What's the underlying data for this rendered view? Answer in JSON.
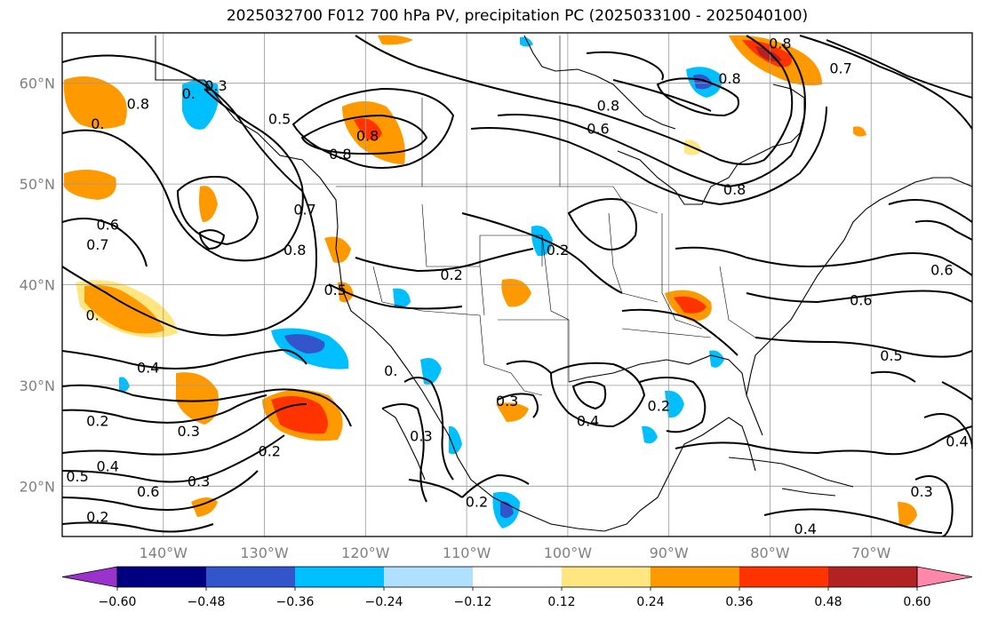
{
  "title": "2025032700 F012 700 hPa PV, precipitation PC (2025033100 - 2025040100)",
  "map": {
    "lon_range": [
      -150,
      -60
    ],
    "lat_range": [
      15,
      65
    ],
    "lat_labels": [
      "20°N",
      "30°N",
      "40°N",
      "50°N",
      "60°N"
    ],
    "lon_labels": [
      "140°W",
      "130°W",
      "120°W",
      "110°W",
      "100°W",
      "90°W",
      "80°W",
      "70°W"
    ]
  },
  "colorbar": {
    "ticks": [
      "−0.60",
      "−0.48",
      "−0.36",
      "−0.24",
      "−0.12",
      "0.12",
      "0.24",
      "0.36",
      "0.48",
      "0.60"
    ],
    "colors": [
      "#9933cc",
      "#000080",
      "#3355cc",
      "#00bfff",
      "#b0e0ff",
      "#ffffff",
      "#ffe680",
      "#ff9900",
      "#ff3300",
      "#b22222",
      "#ff88aa"
    ]
  },
  "contour_labels": [
    {
      "text": "0.3",
      "lon": -134.8,
      "lat": 59.8
    },
    {
      "text": "0.",
      "lon": -137.5,
      "lat": 59.0
    },
    {
      "text": "0.5",
      "lon": -128.5,
      "lat": 56.5
    },
    {
      "text": "0.8",
      "lon": -142.5,
      "lat": 58.0
    },
    {
      "text": "0.8",
      "lon": -119.8,
      "lat": 54.8
    },
    {
      "text": "0.8",
      "lon": -122.5,
      "lat": 53.0
    },
    {
      "text": "0.7",
      "lon": -126.0,
      "lat": 47.5
    },
    {
      "text": "0.8",
      "lon": -127.0,
      "lat": 43.5
    },
    {
      "text": "0.6",
      "lon": -145.5,
      "lat": 46.0
    },
    {
      "text": "0.7",
      "lon": -146.5,
      "lat": 44.0
    },
    {
      "text": "0.5",
      "lon": -123.0,
      "lat": 39.5
    },
    {
      "text": "0.2",
      "lon": -111.5,
      "lat": 41.0
    },
    {
      "text": "0.2",
      "lon": -101.0,
      "lat": 43.5
    },
    {
      "text": "0.8",
      "lon": -96.0,
      "lat": 57.8
    },
    {
      "text": "0.6",
      "lon": -97.0,
      "lat": 55.5
    },
    {
      "text": "0.8",
      "lon": -84.0,
      "lat": 60.5
    },
    {
      "text": "0.8",
      "lon": -79.0,
      "lat": 64.0
    },
    {
      "text": "0.7",
      "lon": -73.0,
      "lat": 61.5
    },
    {
      "text": "0.8",
      "lon": -83.5,
      "lat": 49.5
    },
    {
      "text": "0.6",
      "lon": -71.0,
      "lat": 38.5
    },
    {
      "text": "0.6",
      "lon": -63.0,
      "lat": 41.5
    },
    {
      "text": "0.5",
      "lon": -68.0,
      "lat": 33.0
    },
    {
      "text": "0.4",
      "lon": -61.5,
      "lat": 24.5
    },
    {
      "text": "0.3",
      "lon": -65.0,
      "lat": 19.5
    },
    {
      "text": "0.4",
      "lon": -76.5,
      "lat": 15.8
    },
    {
      "text": "0.2",
      "lon": -109.0,
      "lat": 18.5
    },
    {
      "text": "0.3",
      "lon": -114.5,
      "lat": 25.0
    },
    {
      "text": "0.3",
      "lon": -106.0,
      "lat": 28.5
    },
    {
      "text": "0.4",
      "lon": -98.0,
      "lat": 26.5
    },
    {
      "text": "0.2",
      "lon": -91.0,
      "lat": 28.0
    },
    {
      "text": "0.",
      "lon": -117.5,
      "lat": 31.5
    },
    {
      "text": "0.4",
      "lon": -141.5,
      "lat": 31.8
    },
    {
      "text": "0.2",
      "lon": -146.5,
      "lat": 26.5
    },
    {
      "text": "0.3",
      "lon": -137.5,
      "lat": 25.5
    },
    {
      "text": "0.4",
      "lon": -145.5,
      "lat": 22.0
    },
    {
      "text": "0.5",
      "lon": -148.5,
      "lat": 21.0
    },
    {
      "text": "0.6",
      "lon": -141.5,
      "lat": 19.5
    },
    {
      "text": "0.2",
      "lon": -146.5,
      "lat": 17.0
    },
    {
      "text": "0.3",
      "lon": -136.5,
      "lat": 20.5
    },
    {
      "text": "0.2",
      "lon": -129.5,
      "lat": 23.5
    },
    {
      "text": "0.",
      "lon": -147.0,
      "lat": 37.0
    },
    {
      "text": "0.",
      "lon": -146.5,
      "lat": 56.0
    }
  ]
}
